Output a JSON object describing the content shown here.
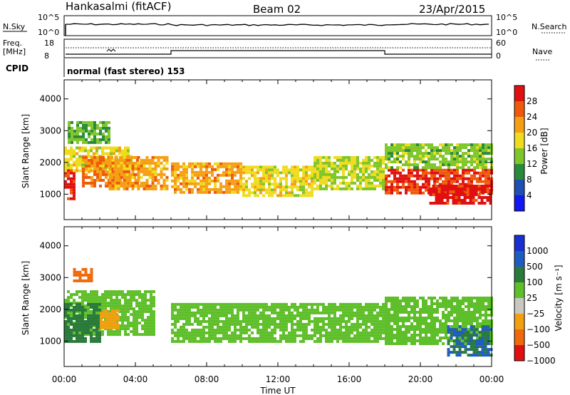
{
  "header": {
    "station": "Hankasalmi (fitACF)",
    "beam": "Beam 02",
    "date": "23/Apr/2015"
  },
  "top_panels": {
    "nsky_label": "N.Sky",
    "nsearch_label": "N.Search",
    "noise_ticks": [
      "10^5",
      "10^0"
    ],
    "freq_label_line1": "Freq.",
    "freq_label_line2": "[MHz]",
    "freq_ticks": [
      "18",
      "8"
    ],
    "nave_label": "Nave",
    "nave_ticks": [
      "60",
      "0"
    ],
    "cpid_label": "CPID",
    "cpid_text": "normal (fast stereo) 153"
  },
  "chart_data": [
    {
      "type": "heatmap",
      "title": "Power",
      "xlabel": "Time UT",
      "ylabel": "Slant Range [km]",
      "x_ticks": [
        "00:00",
        "04:00",
        "08:00",
        "12:00",
        "16:00",
        "20:00",
        "00:00"
      ],
      "y_ticks": [
        "1000",
        "2000",
        "3000",
        "4000"
      ],
      "xlim": [
        0,
        24
      ],
      "ylim": [
        200,
        4600
      ],
      "colorbar": {
        "label": "Power [dB]",
        "ticks": [
          "4",
          "8",
          "12",
          "16",
          "20",
          "24",
          "28"
        ],
        "range": [
          0,
          32
        ],
        "colors": [
          "#1418f0",
          "#1f4fb0",
          "#2a8a3c",
          "#7fc62a",
          "#f0dc1e",
          "#f5a014",
          "#ef5a0a",
          "#e01010"
        ]
      },
      "bands": [
        {
          "t": [
            0.0,
            0.6
          ],
          "r": [
            900,
            1800
          ],
          "value": 30
        },
        {
          "t": [
            0.0,
            3.8
          ],
          "r": [
            1700,
            2500
          ],
          "value": 18
        },
        {
          "t": [
            1.0,
            4.2
          ],
          "r": [
            1300,
            2200
          ],
          "value": 24
        },
        {
          "t": [
            2.5,
            5.8
          ],
          "r": [
            1200,
            2200
          ],
          "value": 22
        },
        {
          "t": [
            0.2,
            2.5
          ],
          "r": [
            2600,
            3300
          ],
          "value": 12
        },
        {
          "t": [
            6.0,
            10.0
          ],
          "r": [
            1100,
            2000
          ],
          "value": 22
        },
        {
          "t": [
            10.0,
            14.0
          ],
          "r": [
            1000,
            1900
          ],
          "value": 18
        },
        {
          "t": [
            14.0,
            18.0
          ],
          "r": [
            1200,
            2200
          ],
          "value": 16
        },
        {
          "t": [
            18.0,
            24.0
          ],
          "r": [
            1000,
            1800
          ],
          "value": 28
        },
        {
          "t": [
            18.0,
            24.0
          ],
          "r": [
            1800,
            2600
          ],
          "value": 14
        },
        {
          "t": [
            20.5,
            24.0
          ],
          "r": [
            700,
            1300
          ],
          "value": 30
        }
      ]
    },
    {
      "type": "heatmap",
      "title": "Velocity",
      "xlabel": "Time UT",
      "ylabel": "Slant Range [km]",
      "x_ticks": [
        "00:00",
        "04:00",
        "08:00",
        "12:00",
        "16:00",
        "20:00",
        "00:00"
      ],
      "y_ticks": [
        "1000",
        "2000",
        "3000",
        "4000"
      ],
      "xlim": [
        0,
        24
      ],
      "ylim": [
        200,
        4600
      ],
      "colorbar": {
        "label": "Velocity [m s⁻¹]",
        "ticks": [
          "1000",
          "500",
          "100",
          "25",
          "−25",
          "−100",
          "−500",
          "−1000"
        ],
        "colors": [
          "#1a2fd0",
          "#1f5cc0",
          "#2a7a3c",
          "#5fbf2a",
          "#c8c8c0",
          "#f0a010",
          "#ef6a0a",
          "#e01010"
        ]
      },
      "bands": [
        {
          "t": [
            0.0,
            5.0
          ],
          "r": [
            1200,
            2600
          ],
          "value": 25
        },
        {
          "t": [
            0.0,
            2.0
          ],
          "r": [
            1000,
            2200
          ],
          "value": 200
        },
        {
          "t": [
            2.0,
            3.0
          ],
          "r": [
            1400,
            2000
          ],
          "value": -100
        },
        {
          "t": [
            0.5,
            1.5
          ],
          "r": [
            2900,
            3300
          ],
          "value": -500
        },
        {
          "t": [
            6.0,
            18.0
          ],
          "r": [
            1000,
            2200
          ],
          "value": 25
        },
        {
          "t": [
            18.0,
            24.0
          ],
          "r": [
            900,
            2400
          ],
          "value": 25
        },
        {
          "t": [
            21.5,
            24.0
          ],
          "r": [
            600,
            1500
          ],
          "value": 300
        }
      ]
    }
  ],
  "colors": {
    "axis": "#000000",
    "background": "#ffffff"
  }
}
